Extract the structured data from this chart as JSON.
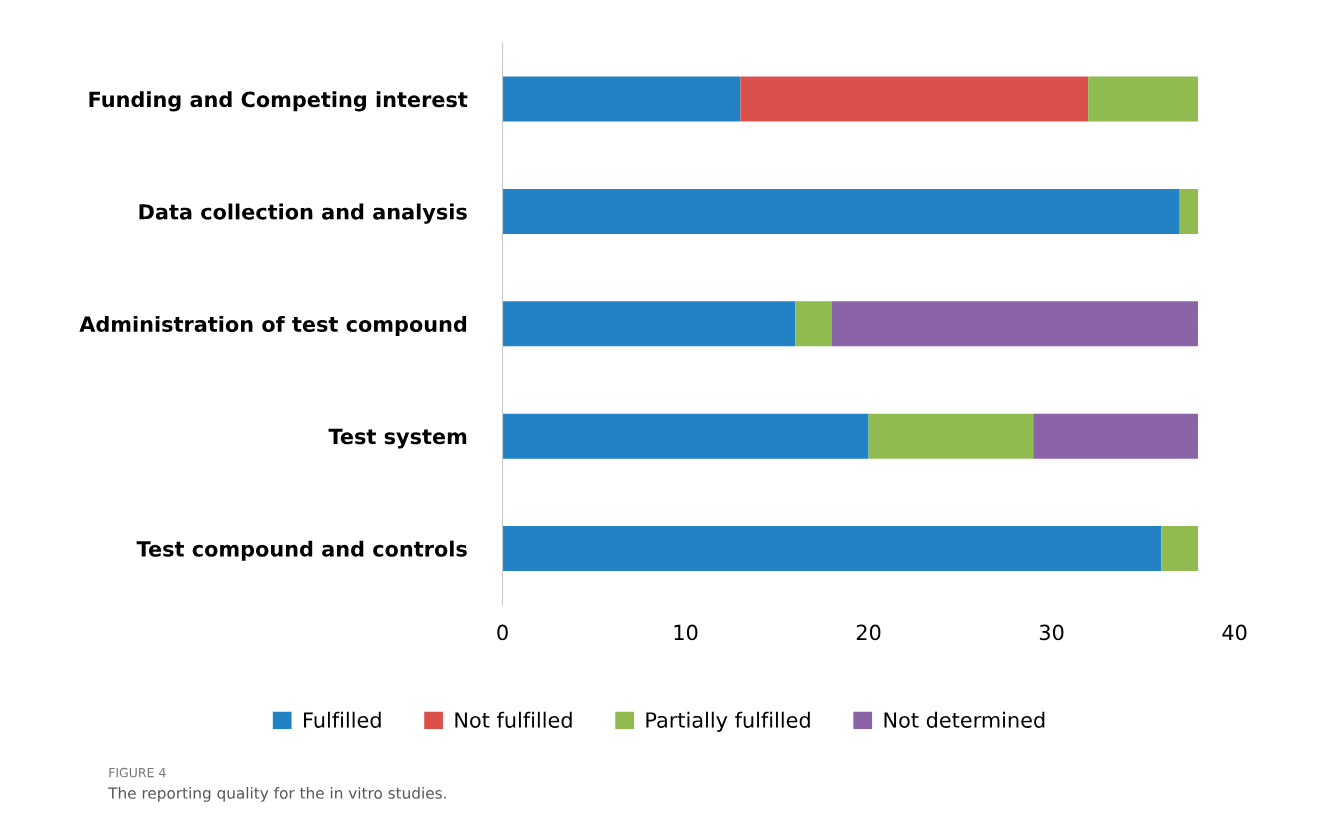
{
  "chart_data": {
    "type": "bar",
    "orientation": "horizontal",
    "stacked": true,
    "categories": [
      "Funding and Competing interest",
      "Data collection and analysis",
      "Administration of test compound",
      "Test system",
      "Test compound and controls"
    ],
    "series": [
      {
        "name": "Fulfilled",
        "color": "#2382c4",
        "values": [
          13,
          37,
          16,
          20,
          36
        ]
      },
      {
        "name": "Not fulfilled",
        "color": "#dc504b",
        "values": [
          19,
          0,
          0,
          0,
          0
        ]
      },
      {
        "name": "Partially fulfilled",
        "color": "#8fbb50",
        "values": [
          6,
          1,
          2,
          9,
          2
        ]
      },
      {
        "name": "Not determined",
        "color": "#8a64a6",
        "values": [
          0,
          0,
          20,
          9,
          0
        ]
      }
    ],
    "xlim": [
      0,
      40
    ],
    "xticks": [
      0,
      10,
      20,
      30,
      40
    ],
    "grid": false,
    "legend": "bottom",
    "annotations": [
      "FIGURE 4",
      "The reporting quality for the in vitro studies."
    ]
  }
}
